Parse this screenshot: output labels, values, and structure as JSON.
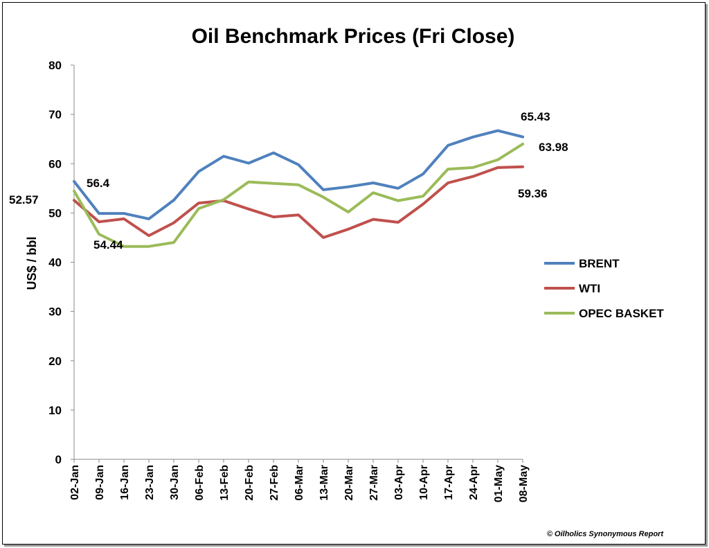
{
  "chart_data": {
    "type": "line",
    "title": "Oil Benchmark Prices (Fri Close)",
    "xlabel": "",
    "ylabel": "US$ / bbl",
    "ylim": [
      0,
      80
    ],
    "yticks": [
      0,
      10,
      20,
      30,
      40,
      50,
      60,
      70,
      80
    ],
    "grid": false,
    "legend_position": "right",
    "categories": [
      "02-Jan",
      "09-Jan",
      "16-Jan",
      "23-Jan",
      "30-Jan",
      "06-Feb",
      "13-Feb",
      "20-Feb",
      "27-Feb",
      "06-Mar",
      "13-Mar",
      "20-Mar",
      "27-Mar",
      "03-Apr",
      "10-Apr",
      "17-Apr",
      "24-Apr",
      "01-May",
      "08-May"
    ],
    "series": [
      {
        "name": "BRENT",
        "color": "#4f81bd",
        "values": [
          56.4,
          49.9,
          49.9,
          48.8,
          52.6,
          58.4,
          61.5,
          60.1,
          62.2,
          59.8,
          54.7,
          55.3,
          56.1,
          55.0,
          57.9,
          63.7,
          65.4,
          66.7,
          65.43
        ]
      },
      {
        "name": "WTI",
        "color": "#c0504d",
        "values": [
          52.57,
          48.2,
          48.8,
          45.4,
          48.0,
          52.0,
          52.5,
          50.8,
          49.2,
          49.6,
          45.0,
          46.7,
          48.7,
          48.1,
          51.8,
          56.1,
          57.4,
          59.2,
          59.36
        ]
      },
      {
        "name": "OPEC BASKET",
        "color": "#9bbb59",
        "values": [
          54.44,
          45.7,
          43.2,
          43.2,
          44.0,
          50.9,
          52.7,
          56.3,
          56.0,
          55.7,
          53.2,
          50.2,
          54.1,
          52.5,
          53.4,
          58.9,
          59.2,
          60.8,
          63.98
        ]
      }
    ],
    "annotations": [
      "56.4",
      "52.57",
      "54.44",
      "65.43",
      "63.98",
      "59.36"
    ]
  },
  "credit": "© Oilholics Synonymous Report"
}
